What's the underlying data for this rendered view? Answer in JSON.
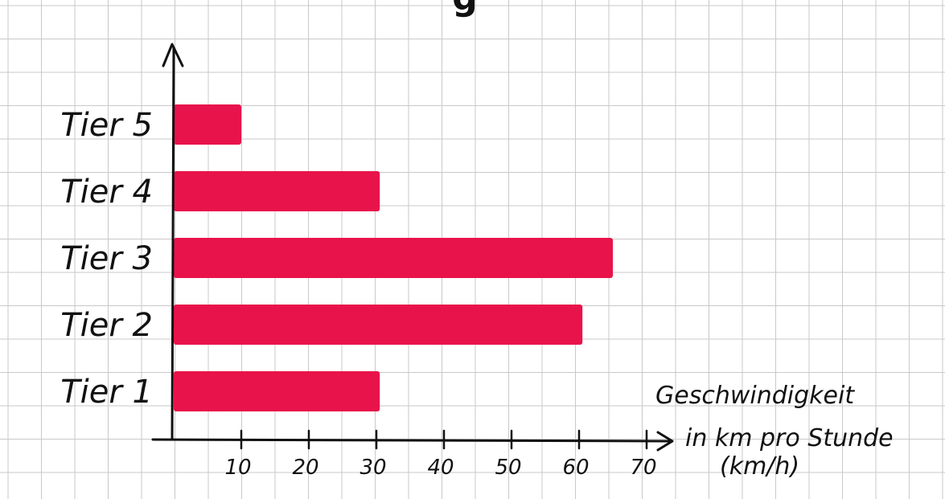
{
  "chart_data": {
    "type": "bar",
    "orientation": "horizontal",
    "title": "g",
    "categories": [
      "Tier 1",
      "Tier 2",
      "Tier 3",
      "Tier 4",
      "Tier 5"
    ],
    "values": [
      30.5,
      60.5,
      65,
      30.5,
      10
    ],
    "x_ticks": [
      "10",
      "20",
      "30",
      "40",
      "50",
      "60",
      "70"
    ],
    "xlabel_lines": [
      "Geschwindigkeit",
      "in km pro Stunde",
      "(km/h)"
    ],
    "ylabel": "",
    "xlim": [
      0,
      70
    ],
    "bar_color": "#e8134a",
    "grid": true
  },
  "colors": {
    "grid": "#c9c9c9",
    "axis": "#111111",
    "paper": "#ffffff"
  }
}
